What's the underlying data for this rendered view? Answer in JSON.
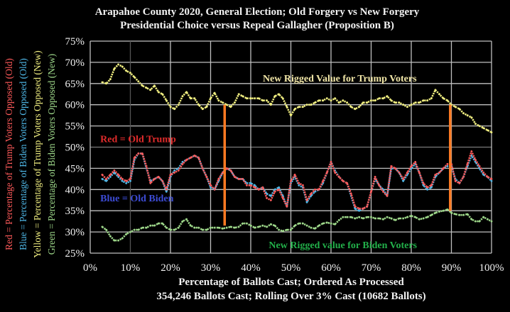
{
  "chart_data": {
    "type": "line",
    "title": "Arapahoe County 2020, General Election; Old Forgery vs New Forgery",
    "subtitle": "Presidential Choice versus Repeal Gallagher (Proposition B)",
    "xlabel": "Percentage of Ballots Cast; Ordered As Processed",
    "xlabel_line2": "354,246 Ballots Cast; Rolling Over 3% Cast (10682 Ballots)",
    "ylabels": [
      {
        "text": "Red = Percentage of Trump Voters Opposed (Old)",
        "color": "#ff5a5a"
      },
      {
        "text": "Blue = Percentage of Biden Voters Opposed (Old)",
        "color": "#4fb8e8"
      },
      {
        "text": "Yellow = Percentage of Trump Voters Opposed (New)",
        "color": "#f0ee80"
      },
      {
        "text": "Green = Percentage of Biden Voters Opposed (New)",
        "color": "#9ed88a"
      }
    ],
    "xlim": [
      0,
      100
    ],
    "ylim": [
      25,
      75
    ],
    "x_ticks": [
      "0%",
      "10%",
      "20%",
      "30%",
      "40%",
      "50%",
      "60%",
      "70%",
      "80%",
      "90%",
      "100%"
    ],
    "y_ticks": [
      "25%",
      "30%",
      "35%",
      "40%",
      "45%",
      "50%",
      "55%",
      "60%",
      "65%",
      "70%",
      "75%"
    ],
    "x_tick_values": [
      0,
      10,
      20,
      30,
      40,
      50,
      60,
      70,
      80,
      90,
      100
    ],
    "y_tick_values": [
      25,
      30,
      35,
      40,
      45,
      50,
      55,
      60,
      65,
      70,
      75
    ],
    "grid": true,
    "legend": "none",
    "x": [
      3,
      4,
      5,
      6,
      7,
      8,
      9,
      10,
      11,
      12,
      13,
      14,
      15,
      16,
      17,
      18,
      19,
      20,
      21,
      22,
      23,
      24,
      25,
      26,
      27,
      28,
      29,
      30,
      31,
      32,
      33,
      34,
      35,
      36,
      37,
      38,
      39,
      40,
      41,
      42,
      43,
      44,
      45,
      46,
      47,
      48,
      49,
      50,
      51,
      52,
      53,
      54,
      55,
      56,
      57,
      58,
      59,
      60,
      61,
      62,
      63,
      64,
      65,
      66,
      67,
      68,
      69,
      70,
      71,
      72,
      73,
      74,
      75,
      76,
      77,
      78,
      79,
      80,
      81,
      82,
      83,
      84,
      85,
      86,
      87,
      88,
      89,
      90,
      91,
      92,
      93,
      94,
      95,
      96,
      97,
      98,
      99,
      100
    ],
    "series": [
      {
        "name": "Red = Old Trump",
        "color": "#ff5a5a",
        "values": [
          43.5,
          42.5,
          43.5,
          44.5,
          43.5,
          42.5,
          42,
          42.5,
          47.5,
          48.5,
          48.5,
          45.5,
          41.5,
          42.5,
          43,
          42,
          40,
          43.5,
          44,
          44.5,
          46,
          47,
          47.5,
          48,
          47.5,
          45,
          43,
          41,
          40,
          42.5,
          44,
          45,
          44.5,
          43,
          42.5,
          42.5,
          41,
          41,
          40.5,
          40,
          40.5,
          38,
          37.5,
          39.5,
          40,
          38,
          36,
          42,
          43.5,
          41.5,
          41,
          37.5,
          39,
          40,
          40,
          42,
          44,
          46.5,
          44,
          43,
          42,
          41.5,
          39,
          36,
          35.5,
          35.5,
          36,
          39.5,
          43,
          41,
          39.5,
          38.5,
          45.5,
          45,
          44,
          42.5,
          44,
          45.5,
          46.5,
          44,
          41.5,
          40.5,
          41,
          43.5,
          44,
          45,
          46,
          46,
          42,
          41.5,
          43,
          46,
          49,
          47,
          45.5,
          44,
          43,
          42.5
        ]
      },
      {
        "name": "Blue = Old Biden",
        "color": "#4fb8e8",
        "values": [
          42.5,
          42,
          43,
          44,
          43,
          42,
          41.5,
          42,
          47,
          48.5,
          48.5,
          45,
          42,
          42.5,
          43,
          42,
          39.5,
          43,
          44.5,
          45,
          46.5,
          47,
          47.5,
          48,
          47.5,
          45,
          43,
          40.5,
          40,
          42,
          44,
          45,
          44.5,
          43,
          42.5,
          42.5,
          41.5,
          41.5,
          41,
          40,
          40.5,
          39,
          38.5,
          40,
          40.5,
          38.5,
          36,
          41.5,
          43,
          41,
          40.5,
          37,
          38.5,
          39.5,
          40,
          41.5,
          44,
          46.5,
          44.5,
          43,
          42,
          41.5,
          38.5,
          35.5,
          35,
          35.5,
          36,
          39.5,
          42.5,
          41,
          40,
          38.5,
          45,
          45,
          44,
          42,
          43.5,
          45,
          46,
          44,
          41,
          40,
          40.5,
          43,
          44,
          45,
          45.5,
          45.5,
          42.5,
          41.5,
          43,
          45.5,
          48,
          46.5,
          45,
          43.5,
          43,
          42
        ]
      },
      {
        "name": "Yellow = New Trump",
        "color": "#f0ee80",
        "values": [
          65.3,
          65,
          66,
          68.5,
          69.5,
          69,
          68,
          67.5,
          66.5,
          65.5,
          64.5,
          64,
          63.5,
          64.5,
          63,
          62.5,
          61,
          59.5,
          59,
          60,
          62,
          63,
          61.5,
          61.5,
          60,
          59,
          59.5,
          61.5,
          62.8,
          61,
          60.5,
          60,
          59.5,
          60.5,
          62.5,
          62,
          61.5,
          61.5,
          61.5,
          61.5,
          61,
          61,
          60,
          62,
          62.5,
          61.5,
          59.5,
          57.5,
          59,
          59.5,
          59.5,
          60,
          60,
          60.5,
          61,
          61,
          61.5,
          61,
          61.5,
          60.5,
          61,
          60.5,
          59.5,
          59,
          59.5,
          60.5,
          60.5,
          61,
          61,
          61.5,
          61.5,
          62,
          61,
          60.5,
          60.5,
          60,
          59.5,
          60,
          60.5,
          60.5,
          61,
          61,
          61.5,
          63.5,
          62.5,
          61.5,
          61,
          60,
          59.5,
          59,
          58,
          57.5,
          57,
          55.5,
          55,
          54.5,
          54,
          53.5
        ]
      },
      {
        "name": "Green = New Biden",
        "color": "#9ed88a",
        "values": [
          31.2,
          30.5,
          29,
          28,
          28,
          28.5,
          29.5,
          30,
          30.5,
          30.5,
          31,
          31,
          31.5,
          31.5,
          32,
          32,
          31,
          30.5,
          30.5,
          31,
          32.5,
          33,
          31.5,
          31,
          31,
          30.5,
          30.5,
          31,
          31,
          31,
          30.8,
          31,
          31.2,
          31,
          31.2,
          32,
          32,
          31.5,
          31,
          31.2,
          31.5,
          31.2,
          31.8,
          31.5,
          30.5,
          30.2,
          30.5,
          30.5,
          31.5,
          32,
          32,
          31.5,
          31,
          30.8,
          31.5,
          32,
          32.2,
          32,
          31.8,
          32.8,
          33.5,
          33.5,
          33.5,
          33.2,
          33.5,
          33.2,
          33.5,
          33.5,
          33.2,
          33.2,
          33,
          33.5,
          33.2,
          32.8,
          33.2,
          33.2,
          33.5,
          33.8,
          33.5,
          33,
          33.2,
          33.5,
          34,
          34.5,
          34.8,
          35,
          35.3,
          34.5,
          34.2,
          34,
          34,
          34.2,
          33,
          32.5,
          32.5,
          33.5,
          33,
          32.5
        ]
      }
    ],
    "markers": [
      {
        "name": "orange-bar-1",
        "x": 33.5,
        "y_from": 31.5,
        "y_to": 60,
        "color": "#ff7a22"
      },
      {
        "name": "orange-bar-2",
        "x": 89.7,
        "y_from": 35,
        "y_to": 60,
        "color": "#ff7a22"
      }
    ],
    "annotations": [
      {
        "name": "annotation-new-trump",
        "text": "New Rigged Value for Trump Voters",
        "x": 43,
        "y": 65.5,
        "color": "#f2e7a8"
      },
      {
        "name": "annotation-old-trump",
        "text": "Red = Old Trump",
        "x": 2.5,
        "y": 51.2,
        "color": "#e02b2b"
      },
      {
        "name": "annotation-old-biden",
        "text": "Blue = Old Biden",
        "x": 2.5,
        "y": 37.2,
        "color": "#3d4cd6"
      },
      {
        "name": "annotation-new-biden",
        "text": "New Rigged value for Biden Voters",
        "x": 44.5,
        "y": 26.2,
        "color": "#22b04a"
      }
    ],
    "colors": {
      "background": "#000000",
      "grid": "#bfbfbf",
      "text": "#f2f2f2"
    }
  }
}
